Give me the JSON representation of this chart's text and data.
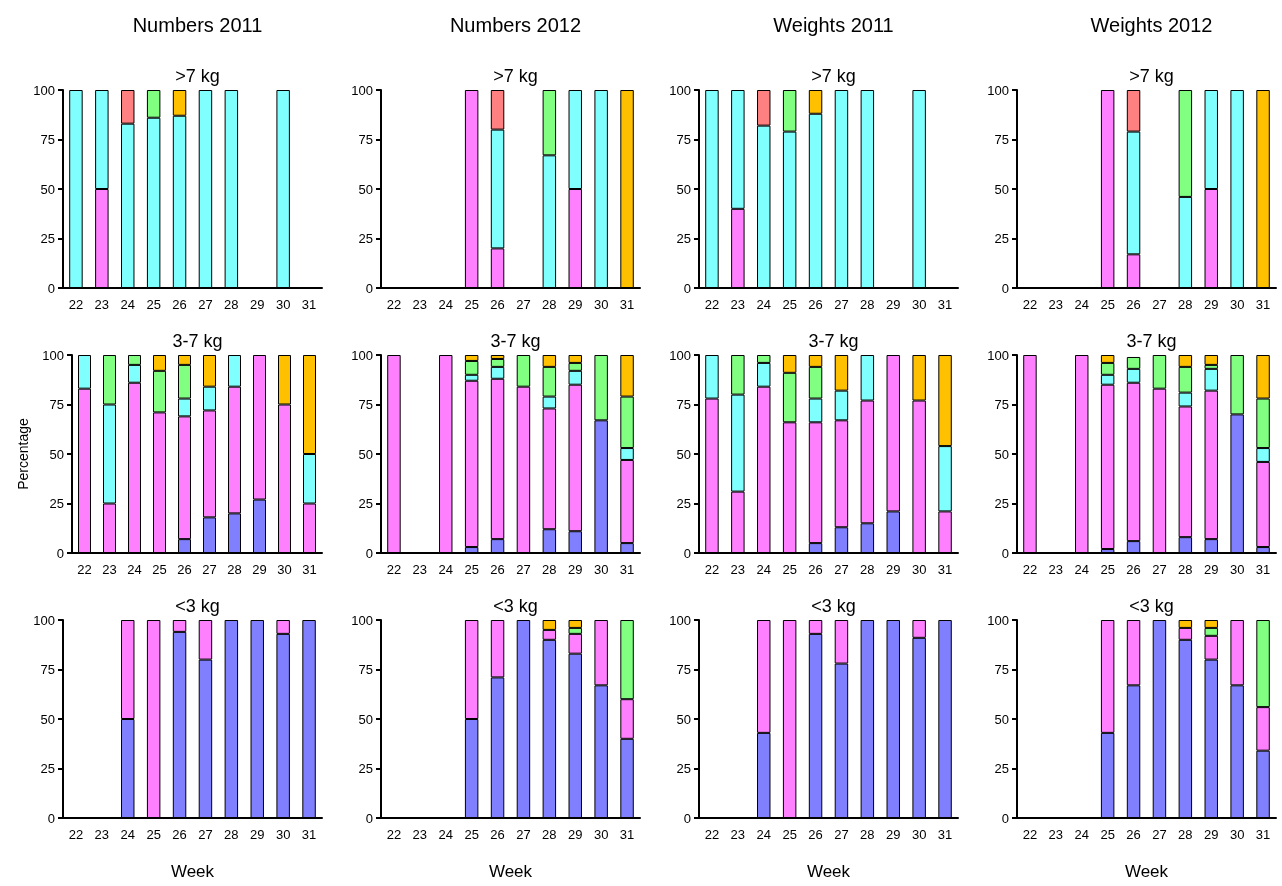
{
  "chart_data": [
    {
      "type": "bar",
      "stacked": true,
      "title": "Numbers 2011",
      "subtitle": ">7 kg",
      "categories": [
        "22",
        "23",
        "24",
        "25",
        "26",
        "27",
        "28",
        "29",
        "30",
        "31"
      ],
      "ylim": [
        0,
        100
      ],
      "yticks": [
        0,
        25,
        50,
        75,
        100
      ],
      "series": [
        {
          "color": "#ff80ff",
          "values": [
            null,
            50,
            null,
            null,
            null,
            null,
            null,
            null,
            null,
            null
          ]
        },
        {
          "color": "#80ffff",
          "values": [
            100,
            50,
            83,
            86,
            87,
            100,
            100,
            null,
            100,
            null
          ]
        },
        {
          "color": "#80ff80",
          "values": [
            null,
            null,
            null,
            14,
            null,
            null,
            null,
            null,
            null,
            null
          ]
        },
        {
          "color": "#ffc000",
          "values": [
            null,
            null,
            null,
            null,
            13,
            null,
            null,
            null,
            null,
            null
          ]
        },
        {
          "color": "#ff8080",
          "values": [
            null,
            null,
            17,
            null,
            null,
            null,
            null,
            null,
            null,
            null
          ]
        }
      ]
    },
    {
      "type": "bar",
      "stacked": true,
      "title": "Numbers 2012",
      "subtitle": ">7 kg",
      "categories": [
        "22",
        "23",
        "24",
        "25",
        "26",
        "27",
        "28",
        "29",
        "30",
        "31"
      ],
      "ylim": [
        0,
        100
      ],
      "yticks": [
        0,
        25,
        50,
        75,
        100
      ],
      "series": [
        {
          "color": "#ff80ff",
          "values": [
            null,
            null,
            null,
            100,
            20,
            null,
            null,
            50,
            null,
            null
          ]
        },
        {
          "color": "#80ffff",
          "values": [
            null,
            null,
            null,
            null,
            60,
            null,
            67,
            50,
            100,
            null
          ]
        },
        {
          "color": "#80ff80",
          "values": [
            null,
            null,
            null,
            null,
            null,
            null,
            33,
            null,
            null,
            null
          ]
        },
        {
          "color": "#ffc000",
          "values": [
            null,
            null,
            null,
            null,
            null,
            null,
            null,
            null,
            null,
            100
          ]
        },
        {
          "color": "#ff8080",
          "values": [
            null,
            null,
            null,
            null,
            20,
            null,
            null,
            null,
            null,
            null
          ]
        }
      ]
    },
    {
      "type": "bar",
      "stacked": true,
      "title": "Weights 2011",
      "subtitle": ">7 kg",
      "categories": [
        "22",
        "23",
        "24",
        "25",
        "26",
        "27",
        "28",
        "29",
        "30",
        "31"
      ],
      "ylim": [
        0,
        100
      ],
      "yticks": [
        0,
        25,
        50,
        75,
        100
      ],
      "series": [
        {
          "color": "#ff80ff",
          "values": [
            null,
            40,
            null,
            null,
            null,
            null,
            null,
            null,
            null,
            null
          ]
        },
        {
          "color": "#80ffff",
          "values": [
            100,
            60,
            82,
            79,
            88,
            100,
            100,
            null,
            100,
            null
          ]
        },
        {
          "color": "#80ff80",
          "values": [
            null,
            null,
            null,
            21,
            null,
            null,
            null,
            null,
            null,
            null
          ]
        },
        {
          "color": "#ffc000",
          "values": [
            null,
            null,
            null,
            null,
            12,
            null,
            null,
            null,
            null,
            null
          ]
        },
        {
          "color": "#ff8080",
          "values": [
            null,
            null,
            18,
            null,
            null,
            null,
            null,
            null,
            null,
            null
          ]
        }
      ]
    },
    {
      "type": "bar",
      "stacked": true,
      "title": "Weights 2012",
      "subtitle": ">7 kg",
      "categories": [
        "22",
        "23",
        "24",
        "25",
        "26",
        "27",
        "28",
        "29",
        "30",
        "31"
      ],
      "ylim": [
        0,
        100
      ],
      "yticks": [
        0,
        25,
        50,
        75,
        100
      ],
      "series": [
        {
          "color": "#ff80ff",
          "values": [
            null,
            null,
            null,
            100,
            17,
            null,
            null,
            50,
            null,
            null
          ]
        },
        {
          "color": "#80ffff",
          "values": [
            null,
            null,
            null,
            null,
            62,
            null,
            46,
            50,
            100,
            null
          ]
        },
        {
          "color": "#80ff80",
          "values": [
            null,
            null,
            null,
            null,
            null,
            null,
            54,
            null,
            null,
            null
          ]
        },
        {
          "color": "#ffc000",
          "values": [
            null,
            null,
            null,
            null,
            null,
            null,
            null,
            null,
            null,
            100
          ]
        },
        {
          "color": "#ff8080",
          "values": [
            null,
            null,
            null,
            null,
            21,
            null,
            null,
            null,
            null,
            null
          ]
        }
      ]
    },
    {
      "type": "bar",
      "stacked": true,
      "subtitle": "3-7 kg",
      "ylabel": "Percentage",
      "categories": [
        "22",
        "23",
        "24",
        "25",
        "26",
        "27",
        "28",
        "29",
        "30",
        "31"
      ],
      "ylim": [
        0,
        100
      ],
      "yticks": [
        0,
        25,
        50,
        75,
        100
      ],
      "series": [
        {
          "color": "#8080ff",
          "values": [
            null,
            null,
            null,
            null,
            7,
            18,
            20,
            27,
            null,
            null
          ]
        },
        {
          "color": "#ff80ff",
          "values": [
            83,
            25,
            86,
            71,
            62,
            54,
            64,
            73,
            75,
            25
          ]
        },
        {
          "color": "#80ffff",
          "values": [
            17,
            50,
            9,
            null,
            9,
            12,
            16,
            null,
            null,
            25
          ]
        },
        {
          "color": "#80ff80",
          "values": [
            null,
            25,
            5,
            21,
            17,
            null,
            null,
            null,
            null,
            null
          ]
        },
        {
          "color": "#ffc000",
          "values": [
            null,
            null,
            null,
            8,
            5,
            16,
            null,
            null,
            25,
            50
          ]
        }
      ]
    },
    {
      "type": "bar",
      "stacked": true,
      "subtitle": "3-7 kg",
      "categories": [
        "22",
        "23",
        "24",
        "25",
        "26",
        "27",
        "28",
        "29",
        "30",
        "31"
      ],
      "ylim": [
        0,
        100
      ],
      "yticks": [
        0,
        25,
        50,
        75,
        100
      ],
      "series": [
        {
          "color": "#8080ff",
          "values": [
            null,
            null,
            null,
            3,
            7,
            null,
            12,
            11,
            67,
            5
          ]
        },
        {
          "color": "#ff80ff",
          "values": [
            100,
            null,
            100,
            84,
            81,
            84,
            61,
            74,
            null,
            42
          ]
        },
        {
          "color": "#80ffff",
          "values": [
            null,
            null,
            null,
            3,
            6,
            null,
            6,
            7,
            null,
            6
          ]
        },
        {
          "color": "#80ff80",
          "values": [
            null,
            null,
            null,
            7,
            4,
            16,
            15,
            4,
            33,
            26
          ]
        },
        {
          "color": "#ffc000",
          "values": [
            null,
            null,
            null,
            3,
            2,
            null,
            6,
            4,
            null,
            21
          ]
        }
      ]
    },
    {
      "type": "bar",
      "stacked": true,
      "subtitle": "3-7 kg",
      "categories": [
        "22",
        "23",
        "24",
        "25",
        "26",
        "27",
        "28",
        "29",
        "30",
        "31"
      ],
      "ylim": [
        0,
        100
      ],
      "yticks": [
        0,
        25,
        50,
        75,
        100
      ],
      "series": [
        {
          "color": "#8080ff",
          "values": [
            null,
            null,
            null,
            null,
            5,
            13,
            15,
            21,
            null,
            null
          ]
        },
        {
          "color": "#ff80ff",
          "values": [
            78,
            31,
            84,
            66,
            61,
            54,
            62,
            79,
            77,
            21
          ]
        },
        {
          "color": "#80ffff",
          "values": [
            22,
            49,
            12,
            null,
            12,
            15,
            23,
            null,
            null,
            33
          ]
        },
        {
          "color": "#80ff80",
          "values": [
            null,
            20,
            4,
            25,
            16,
            null,
            null,
            null,
            null,
            null
          ]
        },
        {
          "color": "#ffc000",
          "values": [
            null,
            null,
            null,
            9,
            6,
            18,
            null,
            null,
            23,
            46
          ]
        }
      ]
    },
    {
      "type": "bar",
      "stacked": true,
      "subtitle": "3-7 kg",
      "categories": [
        "22",
        "23",
        "24",
        "25",
        "26",
        "27",
        "28",
        "29",
        "30",
        "31"
      ],
      "ylim": [
        0,
        100
      ],
      "yticks": [
        0,
        25,
        50,
        75,
        100
      ],
      "series": [
        {
          "color": "#8080ff",
          "values": [
            null,
            null,
            null,
            2,
            6,
            null,
            8,
            7,
            70,
            3
          ]
        },
        {
          "color": "#ff80ff",
          "values": [
            100,
            null,
            100,
            83,
            80,
            83,
            66,
            75,
            null,
            43
          ]
        },
        {
          "color": "#80ffff",
          "values": [
            null,
            null,
            null,
            5,
            7,
            null,
            7,
            11,
            null,
            7
          ]
        },
        {
          "color": "#80ff80",
          "values": [
            null,
            null,
            null,
            6,
            6,
            17,
            13,
            2,
            30,
            25
          ]
        },
        {
          "color": "#ffc000",
          "values": [
            null,
            null,
            null,
            4,
            null,
            null,
            6,
            5,
            null,
            22
          ]
        }
      ]
    },
    {
      "type": "bar",
      "stacked": true,
      "subtitle": "<3 kg",
      "xlabel": "Week",
      "categories": [
        "22",
        "23",
        "24",
        "25",
        "26",
        "27",
        "28",
        "29",
        "30",
        "31"
      ],
      "ylim": [
        0,
        100
      ],
      "yticks": [
        0,
        25,
        50,
        75,
        100
      ],
      "series": [
        {
          "color": "#8080ff",
          "values": [
            null,
            null,
            50,
            null,
            94,
            80,
            100,
            100,
            93,
            100
          ]
        },
        {
          "color": "#ff80ff",
          "values": [
            null,
            null,
            50,
            100,
            6,
            20,
            null,
            null,
            7,
            null
          ]
        }
      ]
    },
    {
      "type": "bar",
      "stacked": true,
      "subtitle": "<3 kg",
      "xlabel": "Week",
      "categories": [
        "22",
        "23",
        "24",
        "25",
        "26",
        "27",
        "28",
        "29",
        "30",
        "31"
      ],
      "ylim": [
        0,
        100
      ],
      "yticks": [
        0,
        25,
        50,
        75,
        100
      ],
      "series": [
        {
          "color": "#8080ff",
          "values": [
            null,
            null,
            null,
            50,
            71,
            100,
            90,
            83,
            67,
            40
          ]
        },
        {
          "color": "#ff80ff",
          "values": [
            null,
            null,
            null,
            50,
            29,
            null,
            5,
            10,
            33,
            20
          ]
        },
        {
          "color": "#80ff80",
          "values": [
            null,
            null,
            null,
            null,
            null,
            null,
            null,
            3,
            null,
            40
          ]
        },
        {
          "color": "#ffc000",
          "values": [
            null,
            null,
            null,
            null,
            null,
            null,
            5,
            4,
            null,
            null
          ]
        }
      ]
    },
    {
      "type": "bar",
      "stacked": true,
      "subtitle": "<3 kg",
      "xlabel": "Week",
      "categories": [
        "22",
        "23",
        "24",
        "25",
        "26",
        "27",
        "28",
        "29",
        "30",
        "31"
      ],
      "ylim": [
        0,
        100
      ],
      "yticks": [
        0,
        25,
        50,
        75,
        100
      ],
      "series": [
        {
          "color": "#8080ff",
          "values": [
            null,
            null,
            43,
            null,
            93,
            78,
            100,
            100,
            91,
            100
          ]
        },
        {
          "color": "#ff80ff",
          "values": [
            null,
            null,
            57,
            100,
            7,
            22,
            null,
            null,
            9,
            null
          ]
        }
      ]
    },
    {
      "type": "bar",
      "stacked": true,
      "subtitle": "<3 kg",
      "xlabel": "Week",
      "categories": [
        "22",
        "23",
        "24",
        "25",
        "26",
        "27",
        "28",
        "29",
        "30",
        "31"
      ],
      "ylim": [
        0,
        100
      ],
      "yticks": [
        0,
        25,
        50,
        75,
        100
      ],
      "series": [
        {
          "color": "#8080ff",
          "values": [
            null,
            null,
            null,
            43,
            67,
            100,
            90,
            80,
            67,
            34
          ]
        },
        {
          "color": "#ff80ff",
          "values": [
            null,
            null,
            null,
            57,
            33,
            null,
            6,
            12,
            33,
            22
          ]
        },
        {
          "color": "#80ff80",
          "values": [
            null,
            null,
            null,
            null,
            null,
            null,
            null,
            4,
            null,
            44
          ]
        },
        {
          "color": "#ffc000",
          "values": [
            null,
            null,
            null,
            null,
            null,
            null,
            4,
            4,
            null,
            null
          ]
        }
      ]
    }
  ]
}
